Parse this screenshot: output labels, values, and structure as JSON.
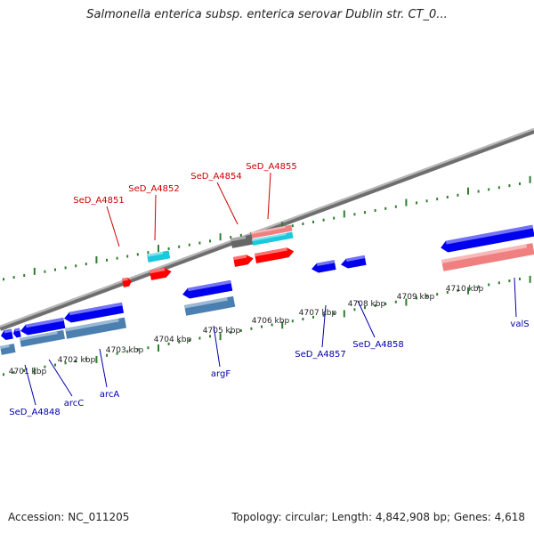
{
  "header": {
    "title": "Salmonella enterica subsp. enterica serovar Dublin str. CT_0..."
  },
  "footer": {
    "accession": "Accession: NC_011205",
    "summary": "Topology: circular; Length: 4,842,908 bp; Genes: 4,618"
  },
  "colors": {
    "backbone": "#8c8c8c",
    "tick": "#2e7d2e",
    "forward_gene": "#ff0000",
    "reverse_gene": "#0000ee",
    "forward_label": "#cc0000",
    "reverse_label": "#0000aa",
    "cyan_feature": "#1cc8dc",
    "steelblue_feature": "#4a7fb0",
    "salmon_feature": "#f08080",
    "gray_feature": "#666666"
  },
  "map": {
    "kbp_labels": [
      "4701 kbp",
      "4702 kbp",
      "4703 kbp",
      "4704 kbp",
      "4705 kbp",
      "4706 kbp",
      "4707 kbp",
      "4708 kbp",
      "4709 kbp",
      "4710 kbp"
    ],
    "forward_genes": [
      "SeD_A4851",
      "SeD_A4852",
      "SeD_A4854",
      "SeD_A4855"
    ],
    "reverse_genes": [
      "SeD_A4848",
      "arcC",
      "arcA",
      "argF",
      "SeD_A4857",
      "SeD_A4858",
      "valS"
    ]
  }
}
